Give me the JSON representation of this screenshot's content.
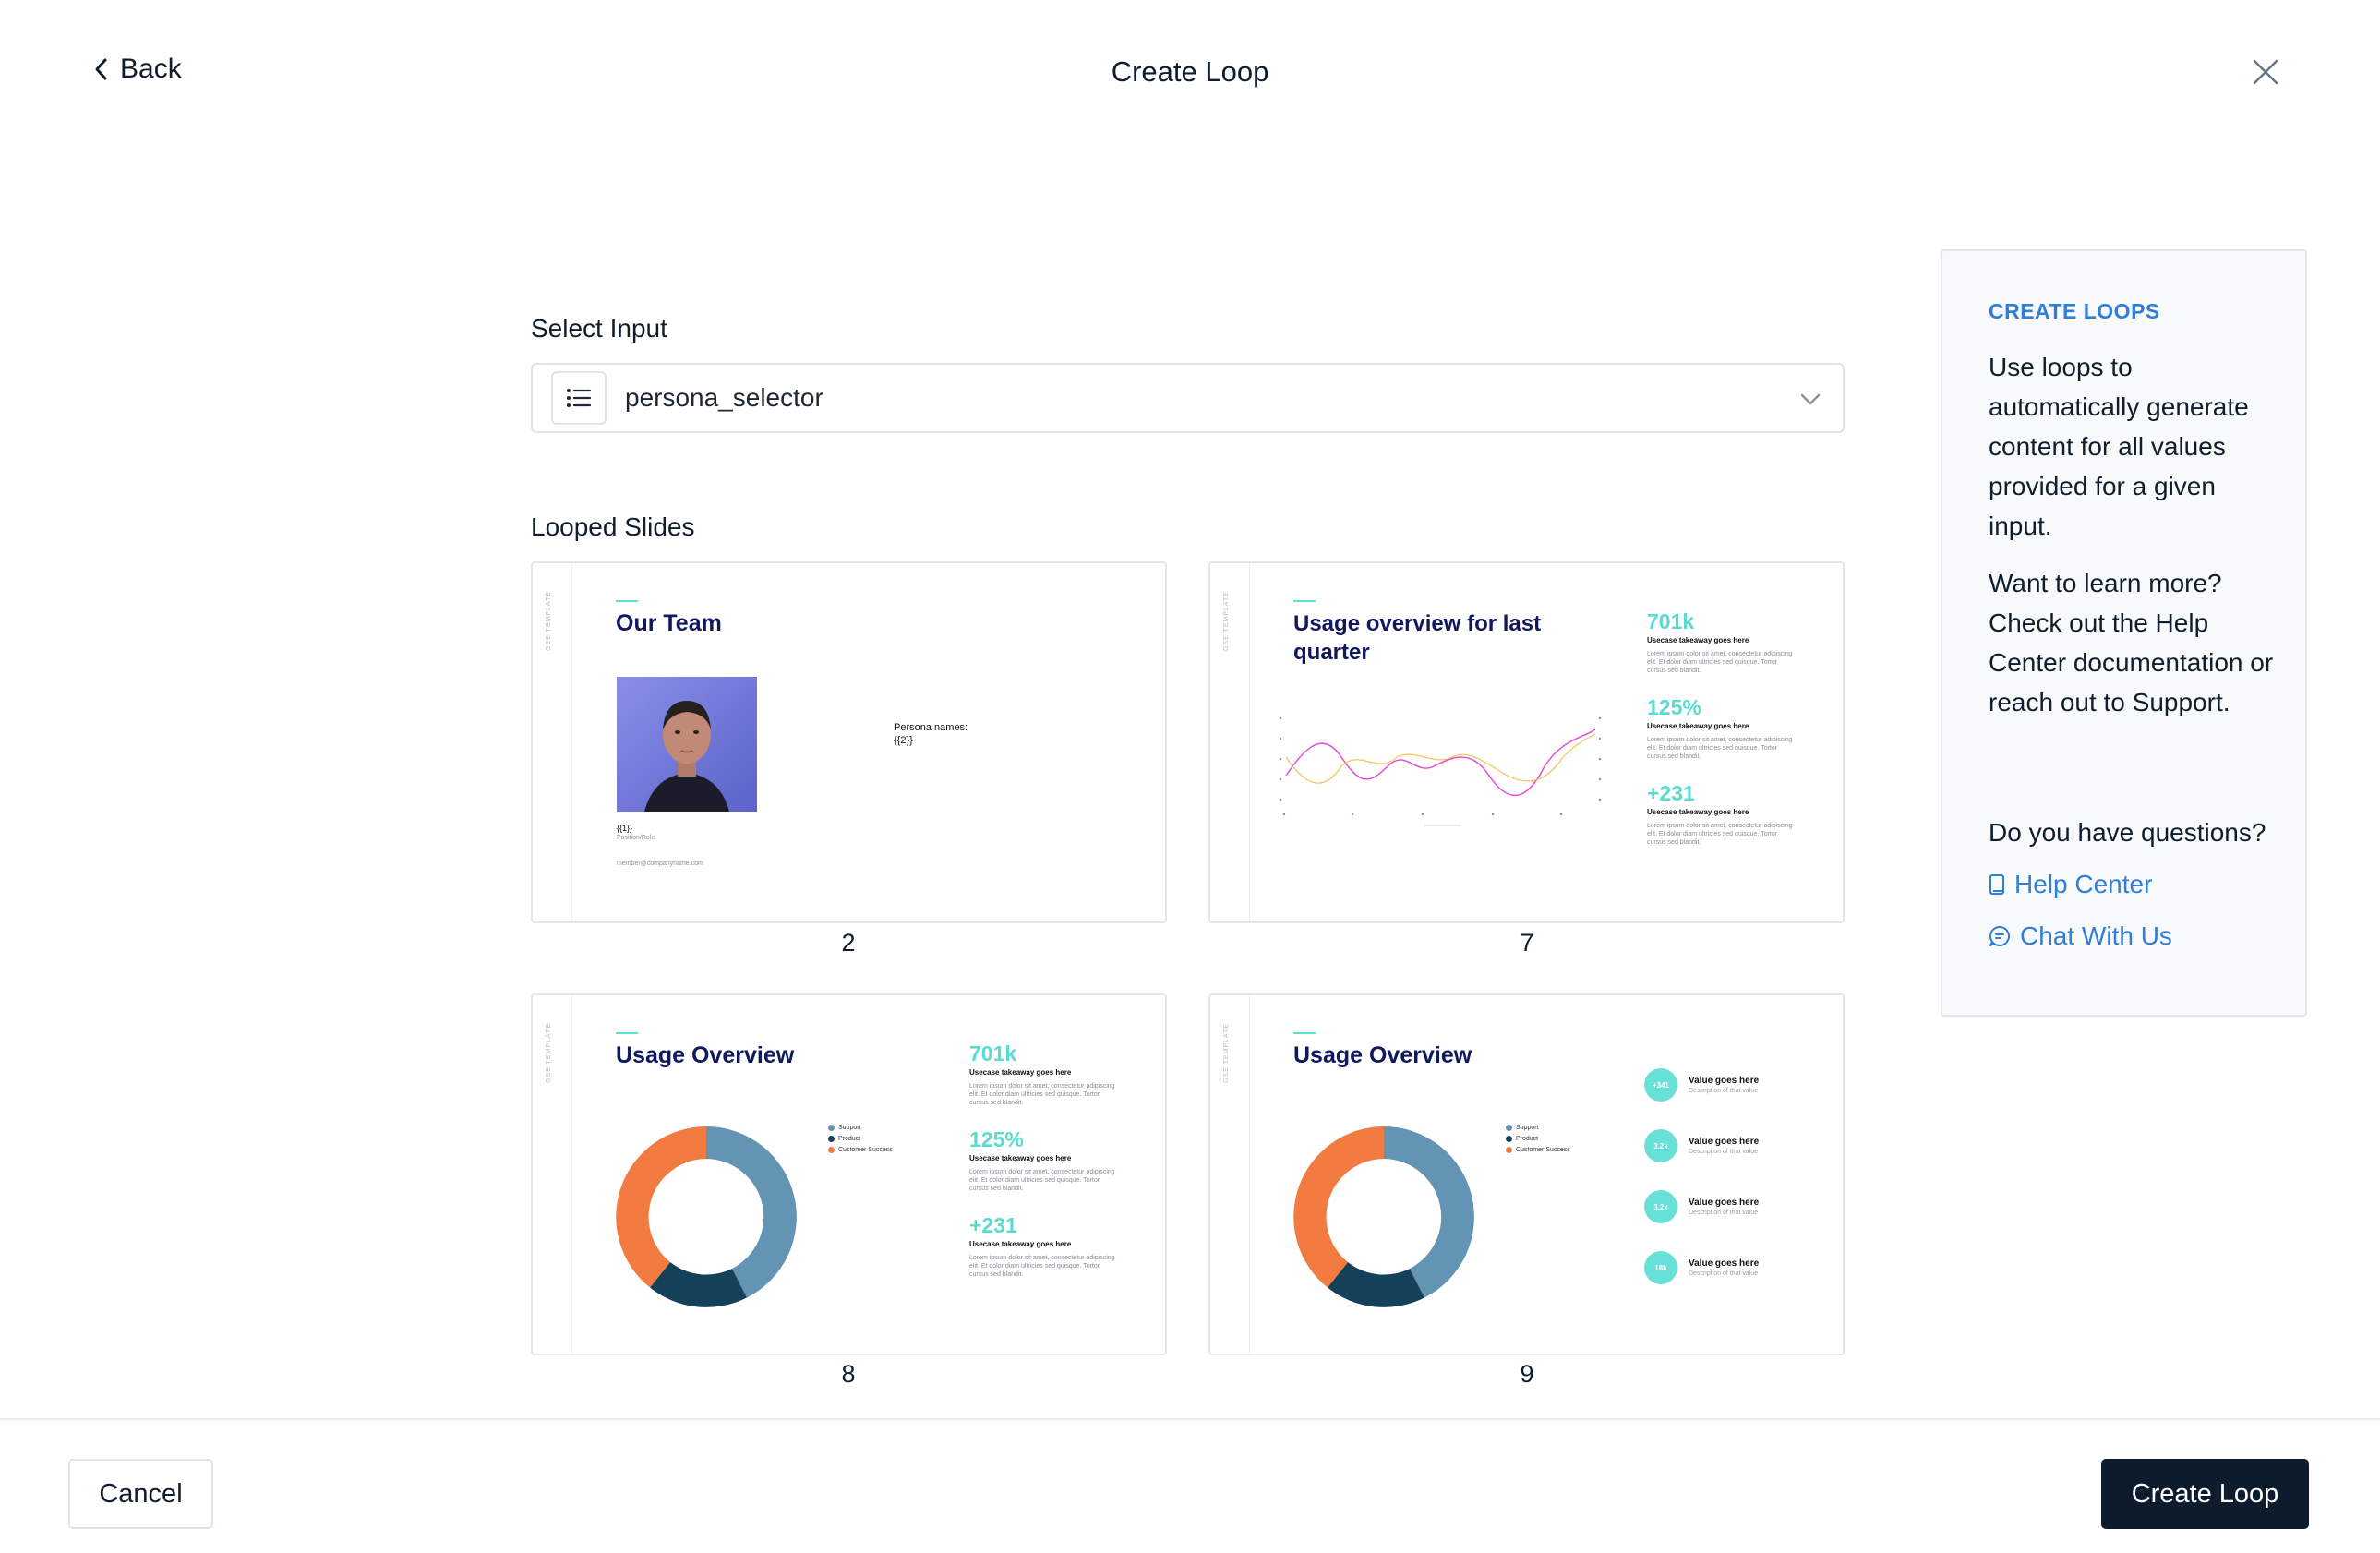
{
  "header": {
    "back_label": "Back",
    "title": "Create Loop"
  },
  "form": {
    "select_label": "Select Input",
    "selected_value": "persona_selector",
    "looped_label": "Looped Slides"
  },
  "slides": [
    {
      "number": "2",
      "vertical_text": "GSE TEMPLATE",
      "title": "Our Team",
      "placeholder_name": "{{1}}",
      "position": "Position/Role",
      "email": "member@companyname.com",
      "persona_label": "Persona names:",
      "persona_value": "{{2}}"
    },
    {
      "number": "7",
      "vertical_text": "GSE TEMPLATE",
      "title_line1": "Usage overview for last",
      "title_line2": "quarter",
      "stats": [
        {
          "value": "701k",
          "label": "Usecase takeaway goes here",
          "lorem": "Lorem ipsum dolor sit amet, consectetur adipiscing elit. Et dolor diam ultricies sed quisque. Tortor cursus sed blandit."
        },
        {
          "value": "125%",
          "label": "Usecase takeaway goes here",
          "lorem": "Lorem ipsum dolor sit amet, consectetur adipiscing elit. Et dolor diam ultricies sed quisque. Tortor cursus sed blandit."
        },
        {
          "value": "+231",
          "label": "Usecase takeaway goes here",
          "lorem": "Lorem ipsum dolor sit amet, consectetur adipiscing elit. Et dolor diam ultricies sed quisque. Tortor cursus sed blandit."
        }
      ]
    },
    {
      "number": "8",
      "vertical_text": "GSE TEMPLATE",
      "title": "Usage Overview",
      "legend": [
        "Support",
        "Product",
        "Customer Success"
      ],
      "stats": [
        {
          "value": "701k",
          "label": "Usecase takeaway goes here",
          "lorem": "Lorem ipsum dolor sit amet, consectetur adipiscing elit. Et dolor diam ultricies sed quisque. Tortor cursus sed blandit."
        },
        {
          "value": "125%",
          "label": "Usecase takeaway goes here",
          "lorem": "Lorem ipsum dolor sit amet, consectetur adipiscing elit. Et dolor diam ultricies sed quisque. Tortor cursus sed blandit."
        },
        {
          "value": "+231",
          "label": "Usecase takeaway goes here",
          "lorem": "Lorem ipsum dolor sit amet, consectetur adipiscing elit. Et dolor diam ultricies sed quisque. Tortor cursus sed blandit."
        }
      ]
    },
    {
      "number": "9",
      "vertical_text": "GSE TEMPLATE",
      "title": "Usage Overview",
      "legend": [
        "Support",
        "Product",
        "Customer Success"
      ],
      "values": [
        {
          "badge": "+341",
          "title": "Value goes here",
          "desc": "Description of that value"
        },
        {
          "badge": "3.2x",
          "title": "Value goes here",
          "desc": "Description of that value"
        },
        {
          "badge": "3.2x",
          "title": "Value goes here",
          "desc": "Description of that value"
        },
        {
          "badge": "18k",
          "title": "Value goes here",
          "desc": "Description of that value"
        }
      ]
    }
  ],
  "donut_colors": {
    "support": "#6494b3",
    "product": "#14405a",
    "customer_success": "#f27b42"
  },
  "sidebar": {
    "heading": "CREATE LOOPS",
    "para1": "Use loops to automatically generate content for all values provided for a given input.",
    "para2": "Want to learn more? Check out the Help Center documentation or reach out to Support.",
    "question": "Do you have questions?",
    "help_link": "Help Center",
    "chat_link": "Chat With Us"
  },
  "footer": {
    "cancel_label": "Cancel",
    "create_label": "Create Loop"
  },
  "colors": {
    "accent": "#2f7ed8",
    "primary_button": "#0d1c2c",
    "teal": "#59dbd2",
    "slide_title": "#10185e"
  }
}
